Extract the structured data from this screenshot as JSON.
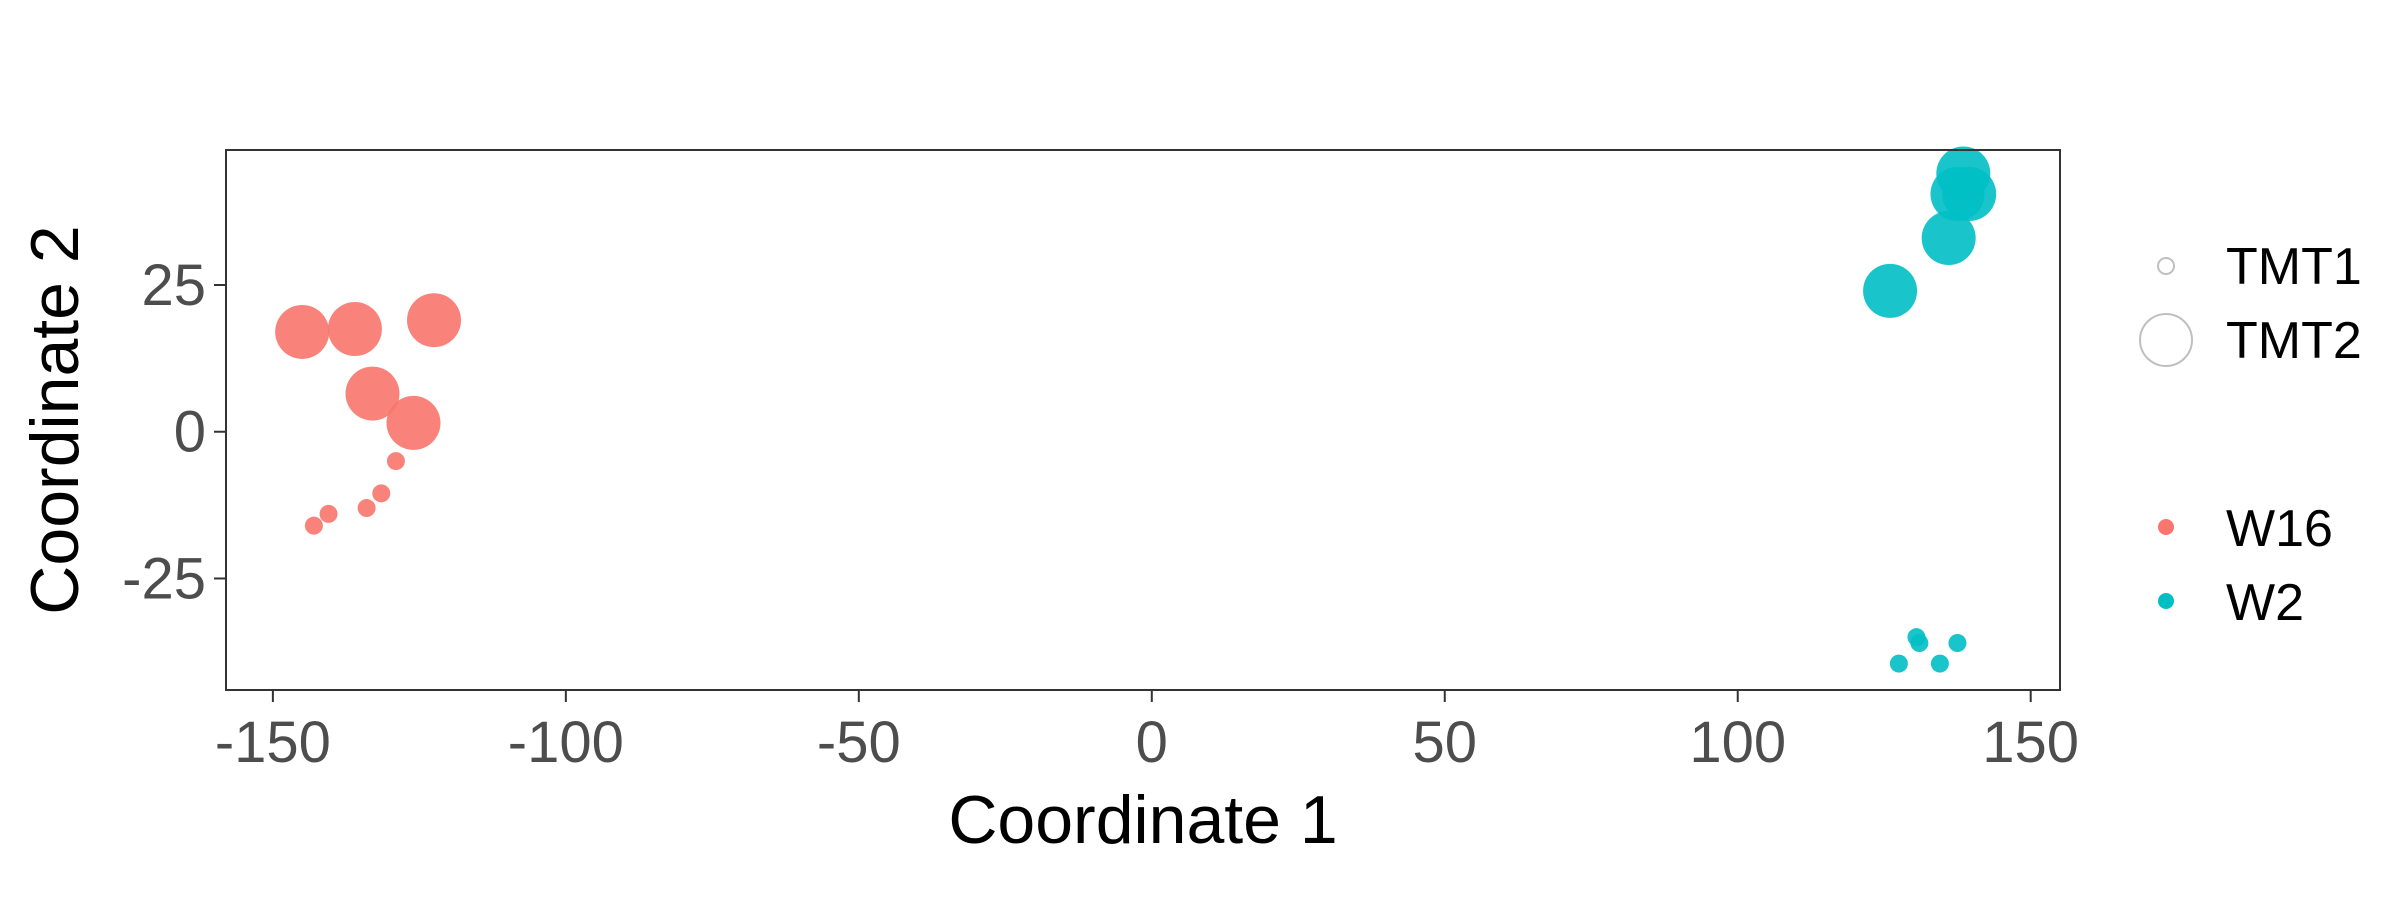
{
  "chart_data": {
    "type": "scatter",
    "title": "",
    "xlabel": "Coordinate 1",
    "ylabel": "Coordinate 2",
    "xlim": [
      -158,
      155
    ],
    "ylim": [
      -44,
      48
    ],
    "x_ticks": [
      -150,
      -100,
      -50,
      0,
      50,
      100,
      150
    ],
    "x_tick_labels": [
      "-150",
      "-100",
      "-50",
      "0",
      "50",
      "100",
      "150"
    ],
    "y_ticks": [
      -25,
      0,
      25
    ],
    "y_tick_labels": [
      "-25",
      "0",
      "25"
    ],
    "grid": false,
    "legend_position": "right",
    "color_legend": [
      {
        "label": "W16",
        "color": "#F8766D"
      },
      {
        "label": "W2",
        "color": "#00BFC4"
      }
    ],
    "size_legend": [
      {
        "label": "TMT1"
      },
      {
        "label": "TMT2"
      }
    ],
    "series": [
      {
        "name": "W16",
        "color": "#F8766D",
        "points": [
          {
            "x": -145,
            "y": 17,
            "size": "TMT2"
          },
          {
            "x": -136,
            "y": 17.5,
            "size": "TMT2"
          },
          {
            "x": -122.5,
            "y": 19,
            "size": "TMT2"
          },
          {
            "x": -133,
            "y": 6.5,
            "size": "TMT2"
          },
          {
            "x": -126,
            "y": 1.5,
            "size": "TMT2"
          },
          {
            "x": -129,
            "y": -5,
            "size": "TMT1"
          },
          {
            "x": -131.5,
            "y": -10.5,
            "size": "TMT1"
          },
          {
            "x": -134,
            "y": -13,
            "size": "TMT1"
          },
          {
            "x": -140.5,
            "y": -14,
            "size": "TMT1"
          },
          {
            "x": -143,
            "y": -16,
            "size": "TMT1"
          }
        ]
      },
      {
        "name": "W2",
        "color": "#00BFC4",
        "points": [
          {
            "x": 138.5,
            "y": 44,
            "size": "TMT2"
          },
          {
            "x": 139.5,
            "y": 40.5,
            "size": "TMT2"
          },
          {
            "x": 137.5,
            "y": 40.5,
            "size": "TMT2"
          },
          {
            "x": 136,
            "y": 33,
            "size": "TMT2"
          },
          {
            "x": 126,
            "y": 24,
            "size": "TMT2"
          },
          {
            "x": 130.5,
            "y": -35,
            "size": "TMT1"
          },
          {
            "x": 131,
            "y": -36,
            "size": "TMT1"
          },
          {
            "x": 137.5,
            "y": -36,
            "size": "TMT1"
          },
          {
            "x": 127.5,
            "y": -39.5,
            "size": "TMT1"
          },
          {
            "x": 134.5,
            "y": -39.5,
            "size": "TMT1"
          }
        ]
      }
    ]
  }
}
